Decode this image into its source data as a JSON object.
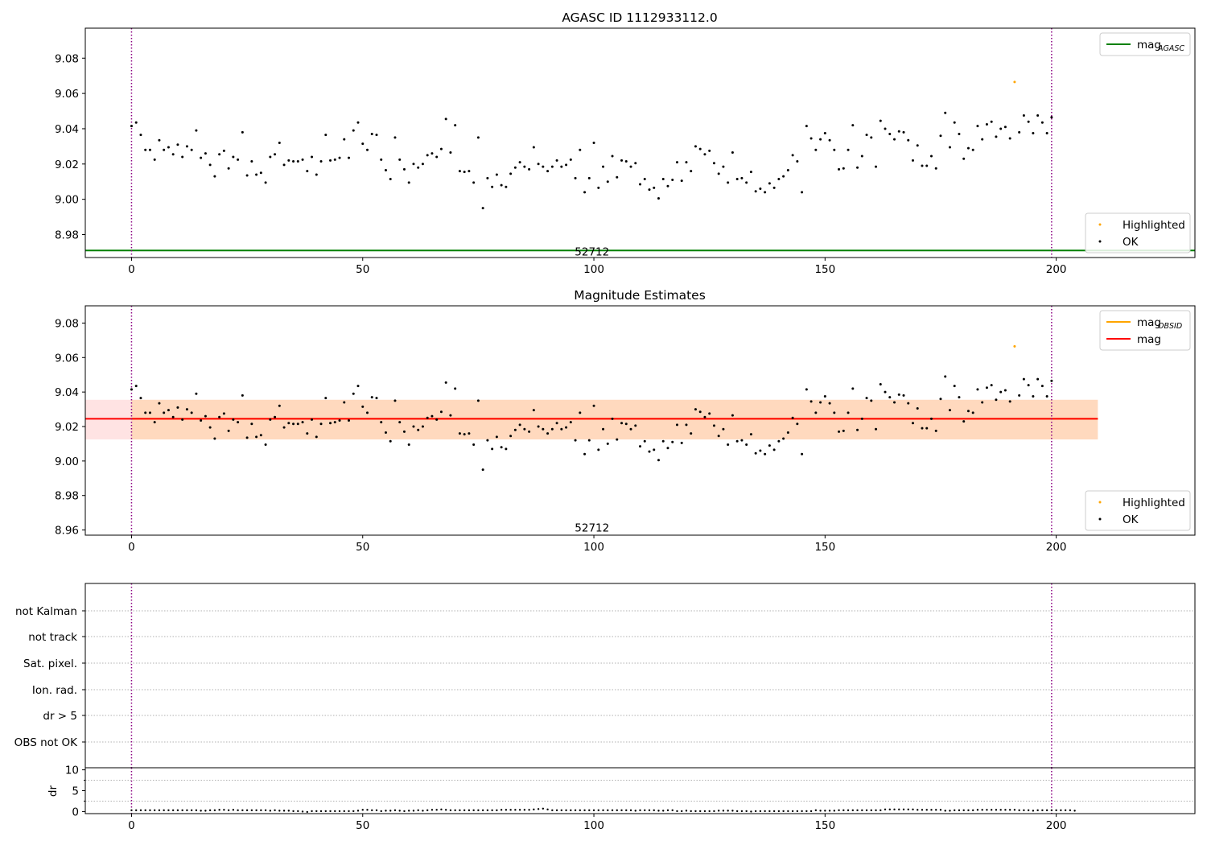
{
  "chart_data": [
    {
      "type": "scatter",
      "title": "AGASC ID 1112933112.0",
      "xlim": [
        -10,
        230
      ],
      "ylim": [
        8.967,
        9.097
      ],
      "xticks": [
        0,
        50,
        100,
        150,
        200
      ],
      "yticks": [
        8.98,
        9.0,
        9.02,
        9.04,
        9.06,
        9.08
      ],
      "ytick_labels": [
        "8.98",
        "9.00",
        "9.02",
        "9.04",
        "9.06",
        "9.08"
      ],
      "annotation": {
        "text": "52712",
        "x": 99.6,
        "y": 8.9705
      },
      "vlines": [
        0,
        199
      ],
      "vline_color": "#8b0082",
      "mag_agasc": 8.971,
      "ok_points": [
        [
          0,
          9.0415
        ],
        [
          1,
          9.0435
        ],
        [
          2,
          9.0365
        ],
        [
          3,
          9.028
        ],
        [
          4,
          9.028
        ],
        [
          5,
          9.0225
        ],
        [
          6,
          9.0335
        ],
        [
          7,
          9.028
        ],
        [
          8,
          9.0295
        ],
        [
          9,
          9.0255
        ],
        [
          10,
          9.031
        ],
        [
          11,
          9.024
        ],
        [
          12,
          9.03
        ],
        [
          13,
          9.028
        ],
        [
          14,
          9.039
        ],
        [
          15,
          9.0235
        ],
        [
          16,
          9.026
        ],
        [
          17,
          9.0195
        ],
        [
          18,
          9.013
        ],
        [
          19,
          9.0255
        ],
        [
          20,
          9.0275
        ],
        [
          21,
          9.0175
        ],
        [
          22,
          9.024
        ],
        [
          23,
          9.0225
        ],
        [
          24,
          9.038
        ],
        [
          25,
          9.0135
        ],
        [
          26,
          9.0215
        ],
        [
          27,
          9.014
        ],
        [
          28,
          9.015
        ],
        [
          29,
          9.0095
        ],
        [
          30,
          9.024
        ],
        [
          31,
          9.0255
        ],
        [
          32,
          9.032
        ],
        [
          33,
          9.0195
        ],
        [
          34,
          9.022
        ],
        [
          35,
          9.0215
        ],
        [
          36,
          9.0215
        ],
        [
          37,
          9.0225
        ],
        [
          38,
          9.016
        ],
        [
          39,
          9.024
        ],
        [
          40,
          9.014
        ],
        [
          41,
          9.0215
        ],
        [
          42,
          9.0365
        ],
        [
          43,
          9.022
        ],
        [
          44,
          9.0225
        ],
        [
          45,
          9.0235
        ],
        [
          46,
          9.034
        ],
        [
          47,
          9.0235
        ],
        [
          48,
          9.039
        ],
        [
          49,
          9.0435
        ],
        [
          50,
          9.0315
        ],
        [
          51,
          9.028
        ],
        [
          52,
          9.037
        ],
        [
          53,
          9.0365
        ],
        [
          54,
          9.0225
        ],
        [
          55,
          9.0165
        ],
        [
          56,
          9.0115
        ],
        [
          57,
          9.035
        ],
        [
          58,
          9.0225
        ],
        [
          59,
          9.017
        ],
        [
          60,
          9.0095
        ],
        [
          61,
          9.02
        ],
        [
          62,
          9.018
        ],
        [
          63,
          9.02
        ],
        [
          64,
          9.025
        ],
        [
          65,
          9.026
        ],
        [
          66,
          9.024
        ],
        [
          67,
          9.0285
        ],
        [
          68,
          9.0455
        ],
        [
          69,
          9.0265
        ],
        [
          70,
          9.042
        ],
        [
          71,
          9.016
        ],
        [
          72,
          9.0155
        ],
        [
          73,
          9.016
        ],
        [
          74,
          9.0095
        ],
        [
          75,
          9.035
        ],
        [
          76,
          8.995
        ],
        [
          77,
          9.012
        ],
        [
          78,
          9.007
        ],
        [
          79,
          9.014
        ],
        [
          80,
          9.008
        ],
        [
          81,
          9.007
        ],
        [
          82,
          9.0145
        ],
        [
          83,
          9.018
        ],
        [
          84,
          9.021
        ],
        [
          85,
          9.0185
        ],
        [
          86,
          9.017
        ],
        [
          87,
          9.0295
        ],
        [
          88,
          9.02
        ],
        [
          89,
          9.0185
        ],
        [
          90,
          9.016
        ],
        [
          91,
          9.0185
        ],
        [
          92,
          9.022
        ],
        [
          93,
          9.0185
        ],
        [
          94,
          9.0195
        ],
        [
          95,
          9.0225
        ],
        [
          96,
          9.012
        ],
        [
          97,
          9.028
        ],
        [
          98,
          9.004
        ],
        [
          99,
          9.012
        ],
        [
          100,
          9.032
        ],
        [
          101,
          9.0065
        ],
        [
          102,
          9.0185
        ],
        [
          103,
          9.01
        ],
        [
          104,
          9.0245
        ],
        [
          105,
          9.0125
        ],
        [
          106,
          9.022
        ],
        [
          107,
          9.0215
        ],
        [
          108,
          9.0185
        ],
        [
          109,
          9.0205
        ],
        [
          110,
          9.0085
        ],
        [
          111,
          9.0115
        ],
        [
          112,
          9.0055
        ],
        [
          113,
          9.0065
        ],
        [
          114,
          9.0005
        ],
        [
          115,
          9.0115
        ],
        [
          116,
          9.0075
        ],
        [
          117,
          9.011
        ],
        [
          118,
          9.021
        ],
        [
          119,
          9.0105
        ],
        [
          120,
          9.021
        ],
        [
          121,
          9.016
        ],
        [
          122,
          9.03
        ],
        [
          123,
          9.0285
        ],
        [
          124,
          9.0255
        ],
        [
          125,
          9.0275
        ],
        [
          126,
          9.0205
        ],
        [
          127,
          9.0145
        ],
        [
          128,
          9.0185
        ],
        [
          129,
          9.0095
        ],
        [
          130,
          9.0265
        ],
        [
          131,
          9.0115
        ],
        [
          132,
          9.012
        ],
        [
          133,
          9.0095
        ],
        [
          134,
          9.0155
        ],
        [
          135,
          9.0045
        ],
        [
          136,
          9.006
        ],
        [
          137,
          9.004
        ],
        [
          138,
          9.009
        ],
        [
          139,
          9.0065
        ],
        [
          140,
          9.0115
        ],
        [
          141,
          9.013
        ],
        [
          142,
          9.0165
        ],
        [
          143,
          9.025
        ],
        [
          144,
          9.0215
        ],
        [
          145,
          9.004
        ],
        [
          146,
          9.0415
        ],
        [
          147,
          9.0345
        ],
        [
          148,
          9.028
        ],
        [
          149,
          9.034
        ],
        [
          150,
          9.0375
        ],
        [
          151,
          9.0335
        ],
        [
          152,
          9.028
        ],
        [
          153,
          9.017
        ],
        [
          154,
          9.0175
        ],
        [
          155,
          9.028
        ],
        [
          156,
          9.042
        ],
        [
          157,
          9.018
        ],
        [
          158,
          9.0245
        ],
        [
          159,
          9.0365
        ],
        [
          160,
          9.035
        ],
        [
          161,
          9.0185
        ],
        [
          162,
          9.0445
        ],
        [
          163,
          9.04
        ],
        [
          164,
          9.037
        ],
        [
          165,
          9.034
        ],
        [
          166,
          9.0385
        ],
        [
          167,
          9.038
        ],
        [
          168,
          9.0335
        ],
        [
          169,
          9.022
        ],
        [
          170,
          9.0305
        ],
        [
          171,
          9.019
        ],
        [
          172,
          9.019
        ],
        [
          173,
          9.0245
        ],
        [
          174,
          9.0175
        ],
        [
          175,
          9.036
        ],
        [
          176,
          9.049
        ],
        [
          177,
          9.0295
        ],
        [
          178,
          9.0435
        ],
        [
          179,
          9.037
        ],
        [
          180,
          9.023
        ],
        [
          181,
          9.029
        ],
        [
          182,
          9.028
        ],
        [
          183,
          9.0415
        ],
        [
          184,
          9.034
        ],
        [
          185,
          9.0425
        ],
        [
          186,
          9.044
        ],
        [
          187,
          9.0355
        ],
        [
          188,
          9.04
        ],
        [
          189,
          9.041
        ],
        [
          190,
          9.0345
        ],
        [
          192,
          9.038
        ],
        [
          193,
          9.0475
        ],
        [
          194,
          9.044
        ],
        [
          195,
          9.0375
        ],
        [
          196,
          9.0475
        ],
        [
          197,
          9.0435
        ],
        [
          198,
          9.0375
        ],
        [
          199,
          9.0465
        ]
      ],
      "highlighted_points": [
        [
          191,
          9.0665
        ]
      ],
      "legends": [
        {
          "position": "top-right",
          "entries": [
            {
              "label": "mag",
              "subscript": "AGASC",
              "color": "#008000",
              "kind": "line"
            }
          ]
        },
        {
          "position": "bottom-right",
          "entries": [
            {
              "label": "Highlighted",
              "color": "#ffa500",
              "kind": "dot"
            },
            {
              "label": "OK",
              "color": "#000000",
              "kind": "dot"
            }
          ]
        }
      ]
    },
    {
      "type": "scatter",
      "title": "Magnitude Estimates",
      "xlim": [
        -10,
        230
      ],
      "ylim": [
        8.957,
        9.09
      ],
      "xticks": [
        0,
        50,
        100,
        150,
        200
      ],
      "yticks": [
        8.96,
        8.98,
        9.0,
        9.02,
        9.04,
        9.06,
        9.08
      ],
      "ytick_labels": [
        "8.96",
        "8.98",
        "9.00",
        "9.02",
        "9.04",
        "9.06",
        "9.08"
      ],
      "annotation": {
        "text": "52712",
        "x": 99.6,
        "y": 8.9615
      },
      "vlines": [
        0,
        199
      ],
      "vline_color": "#8b0082",
      "mag": 9.0245,
      "mag_obsid": 9.0245,
      "band_xrange": [
        -10,
        209
      ],
      "band_outer": [
        9.0125,
        9.0355
      ],
      "band_inner": [
        9.0125,
        9.0355
      ],
      "band_inner_x": [
        0,
        209
      ],
      "legends": [
        {
          "position": "top-right",
          "entries": [
            {
              "label": "mag",
              "subscript": "OBSID",
              "color": "#ffa500",
              "kind": "line"
            },
            {
              "label": "mag",
              "subscript": "",
              "color": "#ff0000",
              "kind": "line"
            }
          ]
        },
        {
          "position": "bottom-right",
          "entries": [
            {
              "label": "Highlighted",
              "color": "#ffa500",
              "kind": "dot"
            },
            {
              "label": "OK",
              "color": "#000000",
              "kind": "dot"
            }
          ]
        }
      ]
    },
    {
      "type": "scatter",
      "title": "",
      "xlim": [
        -10,
        230
      ],
      "categories": [
        "OBS not OK",
        "dr > 5",
        "Ion. rad.",
        "Sat. pixel.",
        "not track",
        "not Kalman"
      ],
      "vlines": [
        0,
        199
      ],
      "vline_color": "#8b0082",
      "flag_points": []
    },
    {
      "type": "scatter",
      "title": "",
      "xlim": [
        -10,
        230
      ],
      "ylim": [
        -0.5,
        10.5
      ],
      "xticks": [
        0,
        50,
        100,
        150,
        200
      ],
      "yticks": [
        0,
        5,
        10
      ],
      "ytick_labels": [
        "0",
        "5",
        "10"
      ],
      "ylabel": "dr",
      "vlines": [
        0,
        199
      ],
      "vline_color": "#8b0082",
      "dr_values": [
        0.3,
        0.3,
        0.3,
        0.3,
        0.3,
        0.3,
        0.3,
        0.3,
        0.3,
        0.3,
        0.3,
        0.3,
        0.3,
        0.3,
        0.3,
        0.2,
        0.2,
        0.3,
        0.3,
        0.4,
        0.4,
        0.3,
        0.4,
        0.3,
        0.3,
        0.3,
        0.3,
        0.3,
        0.3,
        0.3,
        0.2,
        0.3,
        0.2,
        0.2,
        0.2,
        0.1,
        0.1,
        0.0,
        -0.1,
        0.1,
        0.1,
        0.1,
        0.1,
        0.1,
        0.1,
        0.1,
        0.1,
        0.1,
        0.1,
        0.2,
        0.4,
        0.4,
        0.3,
        0.3,
        0.1,
        0.2,
        0.2,
        0.3,
        0.2,
        0.1,
        0.2,
        0.2,
        0.3,
        0.2,
        0.3,
        0.4,
        0.4,
        0.5,
        0.4,
        0.3,
        0.3,
        0.3,
        0.3,
        0.3,
        0.3,
        0.3,
        0.3,
        0.3,
        0.3,
        0.3,
        0.4,
        0.4,
        0.4,
        0.4,
        0.4,
        0.4,
        0.4,
        0.5,
        0.6,
        0.7,
        0.5,
        0.3,
        0.3,
        0.3,
        0.3,
        0.3,
        0.3,
        0.3,
        0.3,
        0.3,
        0.3,
        0.3,
        0.3,
        0.3,
        0.3,
        0.3,
        0.3,
        0.3,
        0.3,
        0.2,
        0.3,
        0.3,
        0.3,
        0.3,
        0.2,
        0.2,
        0.3,
        0.3,
        0.1,
        0.1,
        0.2,
        0.1,
        0.1,
        0.1,
        0.1,
        0.1,
        0.1,
        0.2,
        0.2,
        0.2,
        0.2,
        0.1,
        0.1,
        0.1,
        0.0,
        0.1,
        0.1,
        0.1,
        0.1,
        0.1,
        0.1,
        0.1,
        0.1,
        0.1,
        0.1,
        0.1,
        0.1,
        0.1,
        0.3,
        0.2,
        0.2,
        0.2,
        0.2,
        0.3,
        0.3,
        0.3,
        0.3,
        0.3,
        0.3,
        0.3,
        0.3,
        0.3,
        0.3,
        0.5,
        0.5,
        0.5,
        0.5,
        0.5,
        0.5,
        0.5,
        0.4,
        0.4,
        0.4,
        0.4,
        0.4,
        0.4,
        0.2,
        0.2,
        0.3,
        0.3,
        0.3,
        0.3,
        0.3,
        0.4,
        0.4,
        0.4,
        0.4,
        0.4,
        0.4,
        0.4,
        0.4,
        0.4,
        0.3,
        0.3,
        0.3,
        0.2,
        0.3,
        0.3,
        0.3,
        0.3,
        0.3,
        0.3,
        0.3,
        0.3,
        0.2
      ]
    }
  ]
}
